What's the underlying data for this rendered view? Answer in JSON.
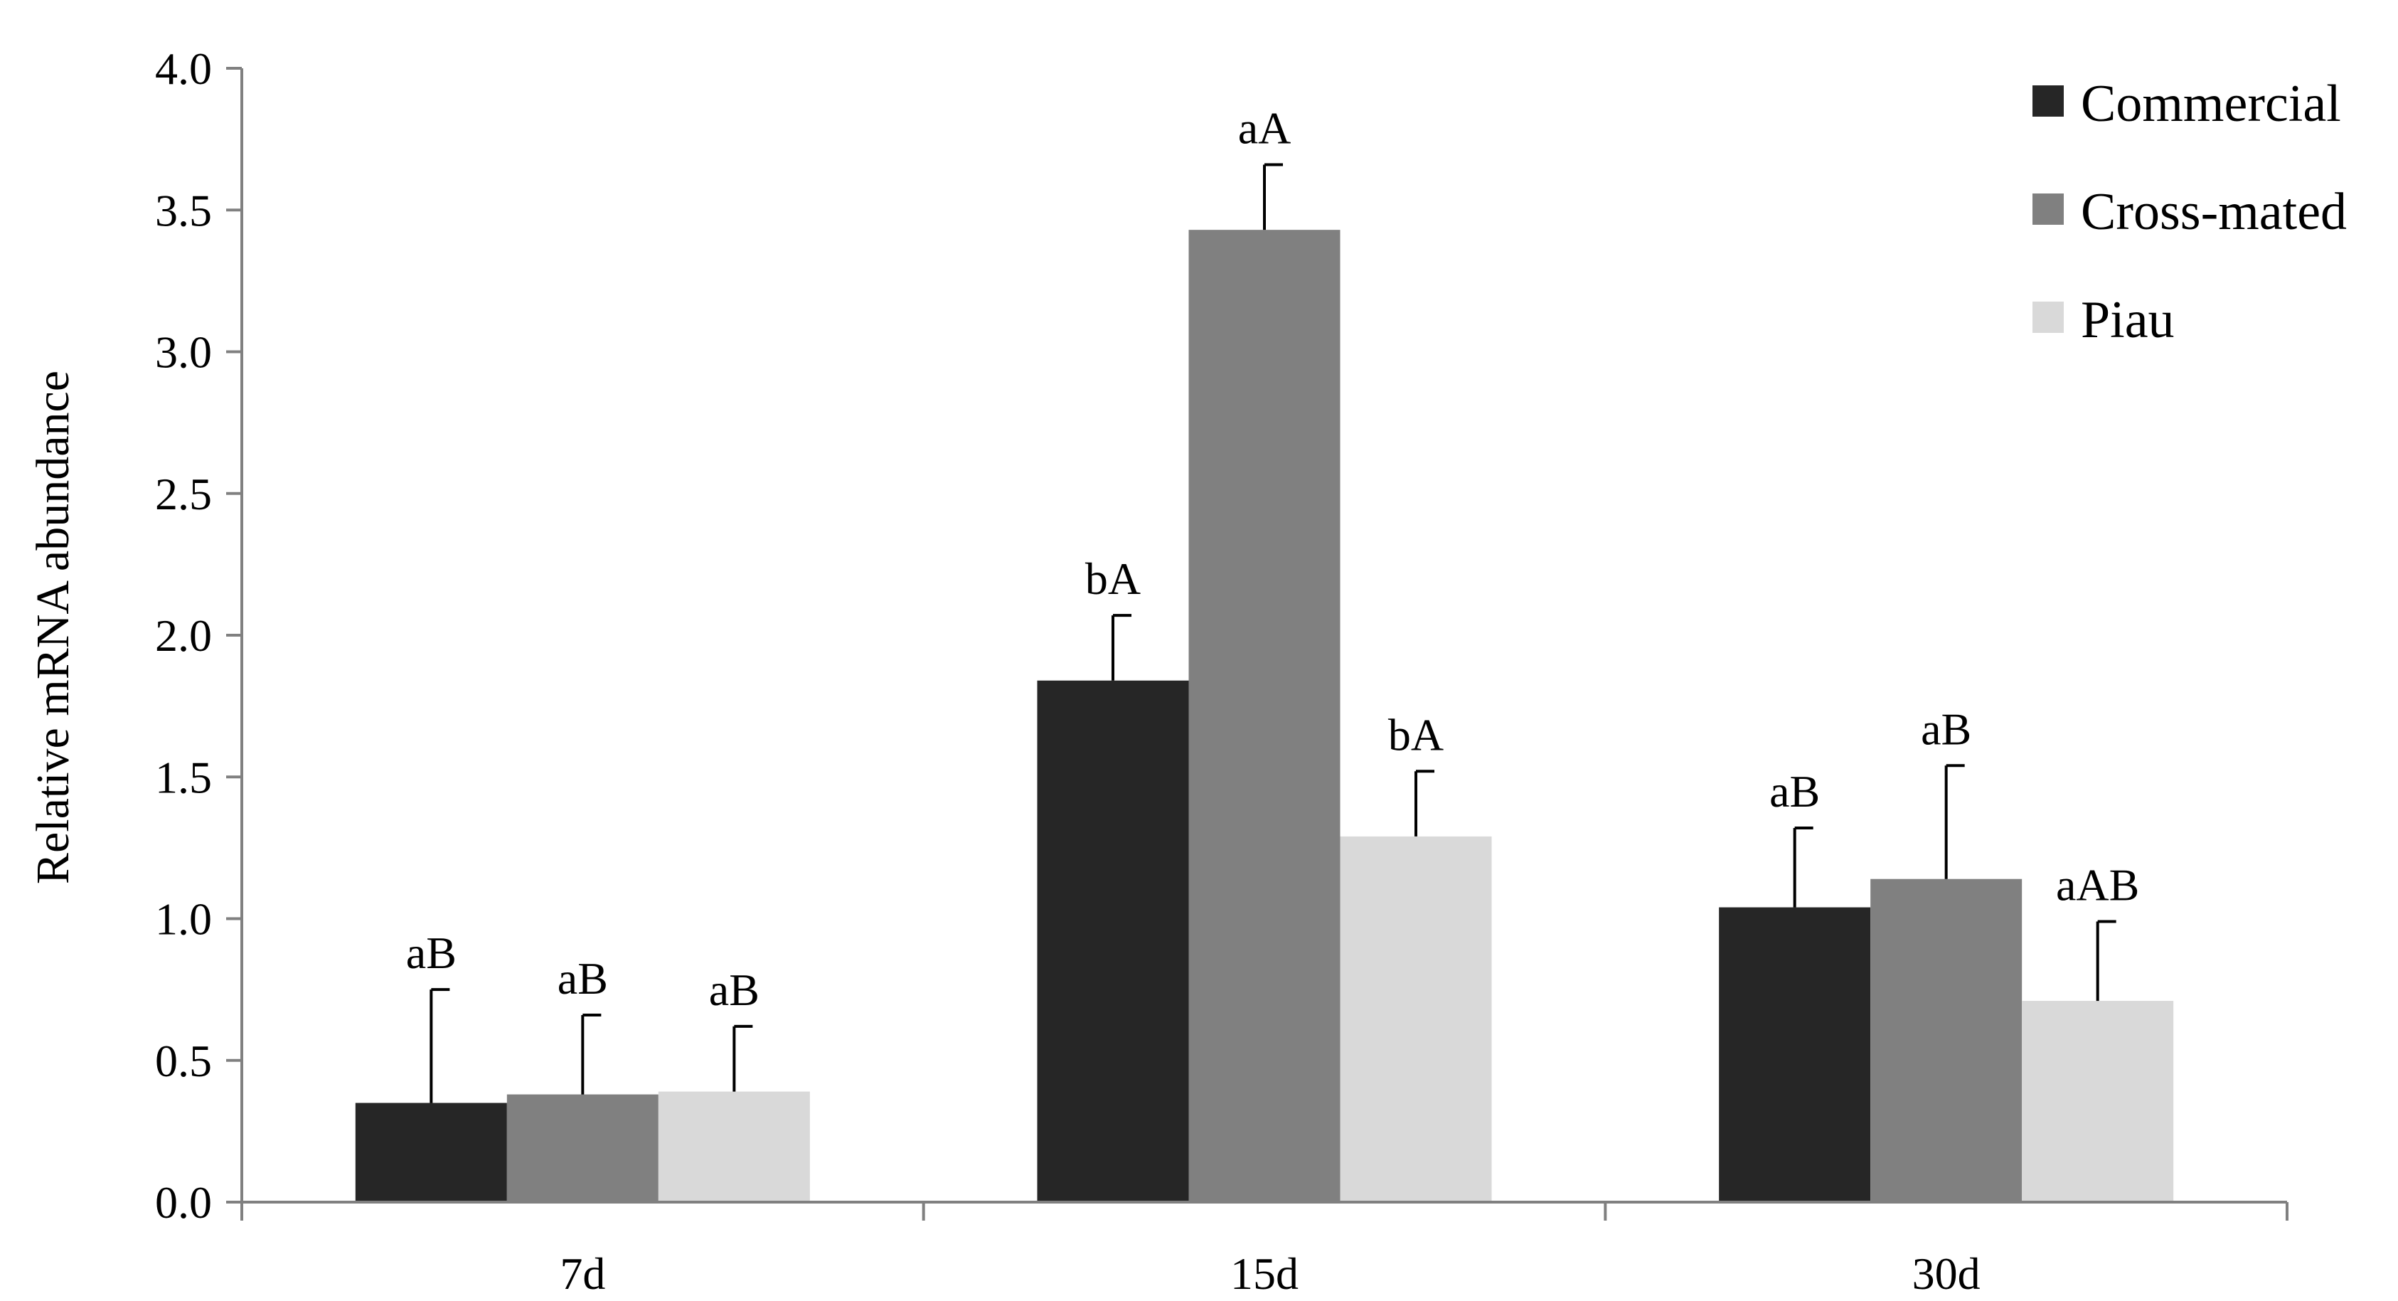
{
  "chart_data": {
    "type": "bar",
    "title": "",
    "xlabel": "",
    "ylabel": "Relative mRNA abundance",
    "ylim": [
      0,
      4.0
    ],
    "yticks": [
      "0.0",
      "0.5",
      "1.0",
      "1.5",
      "2.0",
      "2.5",
      "3.0",
      "3.5",
      "4.0"
    ],
    "categories": [
      "7d",
      "15d",
      "30d"
    ],
    "legend_position": "top-right",
    "grid": false,
    "series": [
      {
        "name": "Commercial",
        "color": "#262626",
        "values": [
          0.35,
          1.84,
          1.04
        ],
        "errors": [
          0.4,
          0.23,
          0.28
        ],
        "labels": [
          "aB",
          "bA",
          "aB"
        ]
      },
      {
        "name": "Cross-mated",
        "color": "#808080",
        "values": [
          0.38,
          3.43,
          1.14
        ],
        "errors": [
          0.28,
          0.23,
          0.4
        ],
        "labels": [
          "aB",
          "aA",
          "aB"
        ]
      },
      {
        "name": "Piau",
        "color": "#d9d9d9",
        "values": [
          0.39,
          1.29,
          0.71
        ],
        "errors": [
          0.23,
          0.23,
          0.28
        ],
        "labels": [
          "aB",
          "bA",
          "aAB"
        ]
      }
    ]
  }
}
